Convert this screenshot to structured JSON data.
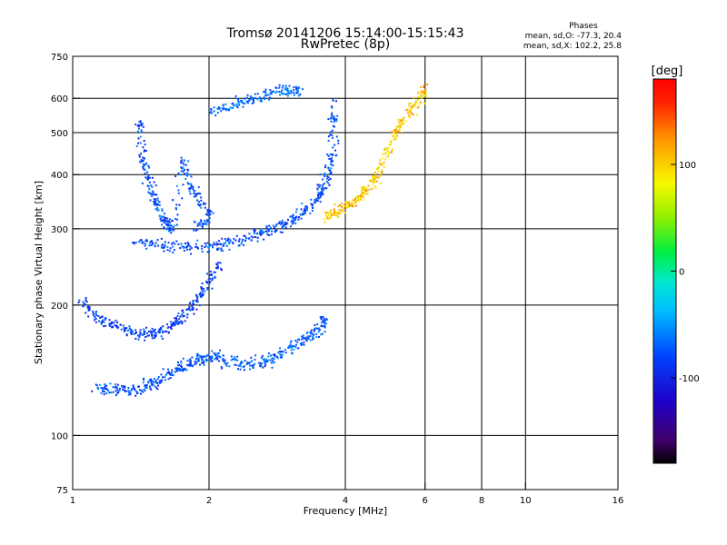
{
  "chart_data": {
    "type": "scatter",
    "title": "Tromsø 20141206 15:14:00-15:15:43",
    "subtitle": "RwPretec (8p)",
    "xlabel": "Frequency [MHz]",
    "ylabel": "Stationary phase Virtual Height [km]",
    "x_scale": "log2",
    "y_scale": "log",
    "xlim": [
      1,
      16
    ],
    "ylim": [
      75,
      750
    ],
    "x_ticks": [
      1,
      2,
      4,
      6,
      8,
      10,
      16
    ],
    "x_tick_labels": [
      "1",
      "2",
      "4",
      "6",
      "8",
      "10",
      "16"
    ],
    "x_grid_lines": [
      2,
      4,
      6,
      8,
      10
    ],
    "y_ticks": [
      75,
      100,
      200,
      300,
      400,
      500,
      600,
      750
    ],
    "y_tick_labels": [
      "75",
      "100",
      "200",
      "300",
      "400",
      "500",
      "600",
      "750"
    ],
    "y_grid_lines": [
      100,
      200,
      300,
      400,
      500,
      600
    ],
    "grid": true,
    "phase_box": {
      "title": "Phases",
      "line1": "mean, sd,O: -77.3, 20.4",
      "line2": "mean, sd,X: 102.2, 25.8"
    },
    "colorbar": {
      "label": "[deg]",
      "range": [
        -180,
        180
      ],
      "ticks": [
        -100,
        0,
        100
      ],
      "tick_labels": [
        "-100",
        "0",
        "100"
      ],
      "colormap": "rainbow (black-purple-blue-cyan-green-yellow-orange-red)"
    },
    "traces": [
      {
        "name": "O",
        "phase_mean": -77,
        "phase_sd": 20,
        "points": [
          [
            1.12,
            130
          ],
          [
            1.2,
            128
          ],
          [
            1.3,
            128
          ],
          [
            1.4,
            129
          ],
          [
            1.5,
            132
          ],
          [
            1.6,
            138
          ],
          [
            1.7,
            143
          ],
          [
            1.8,
            147
          ],
          [
            1.9,
            150
          ],
          [
            2.0,
            152
          ],
          [
            2.1,
            155
          ]
        ]
      },
      {
        "name": "O",
        "phase_mean": -77,
        "phase_sd": 20,
        "points": [
          [
            1.35,
            282
          ],
          [
            1.5,
            278
          ],
          [
            1.7,
            273
          ],
          [
            1.9,
            272
          ],
          [
            2.1,
            276
          ],
          [
            2.3,
            282
          ],
          [
            2.5,
            290
          ],
          [
            2.7,
            298
          ],
          [
            2.9,
            308
          ],
          [
            3.1,
            320
          ],
          [
            3.3,
            335
          ],
          [
            3.5,
            360
          ],
          [
            3.6,
            390
          ],
          [
            3.7,
            430
          ],
          [
            3.75,
            500
          ],
          [
            3.75,
            600
          ]
        ]
      },
      {
        "name": "O",
        "phase_mean": -77,
        "phase_sd": 20,
        "points": [
          [
            1.4,
            540
          ],
          [
            1.42,
            450
          ],
          [
            1.45,
            400
          ],
          [
            1.5,
            360
          ],
          [
            1.55,
            330
          ],
          [
            1.6,
            310
          ],
          [
            1.65,
            300
          ],
          [
            1.75,
            430
          ],
          [
            1.8,
            380
          ],
          [
            1.9,
            350
          ],
          [
            2.0,
            320
          ],
          [
            1.85,
            300
          ]
        ]
      },
      {
        "name": "O",
        "phase_mean": -85,
        "phase_sd": 20,
        "points": [
          [
            1.05,
            205
          ],
          [
            1.1,
            190
          ],
          [
            1.2,
            182
          ],
          [
            1.3,
            176
          ],
          [
            1.4,
            172
          ],
          [
            1.5,
            172
          ],
          [
            1.6,
            176
          ],
          [
            1.7,
            185
          ],
          [
            1.8,
            195
          ],
          [
            1.9,
            210
          ],
          [
            2.0,
            230
          ],
          [
            2.1,
            250
          ]
        ]
      },
      {
        "name": "O",
        "phase_mean": -70,
        "phase_sd": 20,
        "points": [
          [
            2.1,
            150
          ],
          [
            2.3,
            148
          ],
          [
            2.5,
            147
          ],
          [
            2.7,
            150
          ],
          [
            2.9,
            156
          ],
          [
            3.1,
            162
          ],
          [
            3.3,
            170
          ],
          [
            3.5,
            178
          ],
          [
            3.65,
            190
          ]
        ]
      },
      {
        "name": "O",
        "phase_mean": -65,
        "phase_sd": 18,
        "points": [
          [
            2.0,
            560
          ],
          [
            2.2,
            575
          ],
          [
            2.4,
            595
          ],
          [
            2.6,
            610
          ],
          [
            2.8,
            625
          ],
          [
            3.0,
            630
          ],
          [
            3.2,
            620
          ]
        ]
      },
      {
        "name": "X",
        "phase_mean": 102,
        "phase_sd": 26,
        "points": [
          [
            3.6,
            320
          ],
          [
            3.8,
            330
          ],
          [
            4.0,
            340
          ],
          [
            4.2,
            350
          ],
          [
            4.4,
            365
          ],
          [
            4.6,
            385
          ],
          [
            4.8,
            420
          ],
          [
            5.0,
            470
          ],
          [
            5.2,
            520
          ],
          [
            5.5,
            560
          ],
          [
            5.8,
            600
          ],
          [
            6.0,
            640
          ]
        ]
      }
    ]
  }
}
